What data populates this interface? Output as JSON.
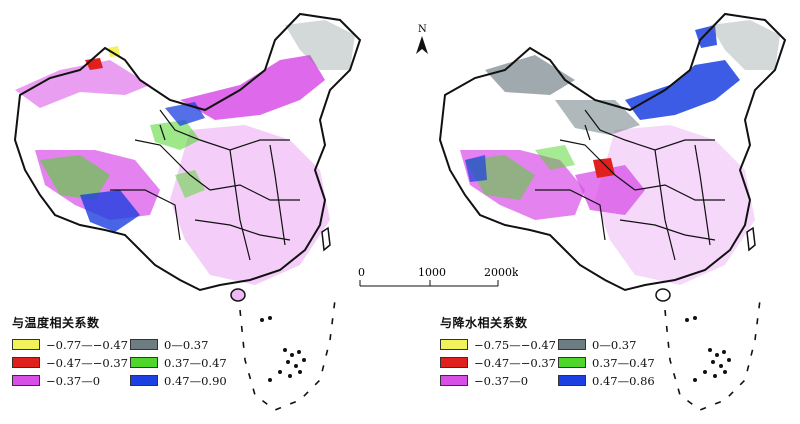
{
  "maps": [
    {
      "id": "left",
      "legend_title": "与温度相关系数",
      "classes": [
        {
          "label": "−0.77—−0.47",
          "color": "#f2f25a"
        },
        {
          "label": "0—0.37",
          "color": "#6d7d82"
        },
        {
          "label": "−0.47—−0.37",
          "color": "#e0201c"
        },
        {
          "label": "0.37—0.47",
          "color": "#4fd62a"
        },
        {
          "label": "−0.37—0",
          "color": "#d84fe8"
        },
        {
          "label": "0.47—0.90",
          "color": "#1b3fe0"
        }
      ]
    },
    {
      "id": "right",
      "legend_title": "与降水相关系数",
      "classes": [
        {
          "label": "−0.75—−0.47",
          "color": "#f2f25a"
        },
        {
          "label": "0—0.37",
          "color": "#6d7d82"
        },
        {
          "label": "−0.47—−0.37",
          "color": "#e0201c"
        },
        {
          "label": "0.37—0.47",
          "color": "#4fd62a"
        },
        {
          "label": "−0.37—0",
          "color": "#d84fe8"
        },
        {
          "label": "0.47—0.86",
          "color": "#1b3fe0"
        }
      ]
    }
  ],
  "scale_bar": {
    "ticks": [
      "0",
      "1000",
      "2000km"
    ]
  },
  "north_label": "N"
}
